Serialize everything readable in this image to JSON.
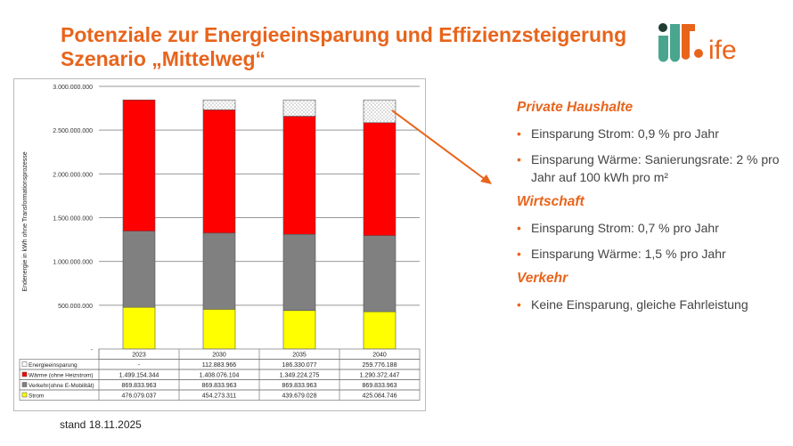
{
  "title": {
    "line1": "Potenziale zur Energieeinsparung und Effizienzsteigerung",
    "line2": "Szenario „Mittelweg“"
  },
  "logo": {
    "text": "ife"
  },
  "colors": {
    "accent": "#e8641b",
    "waerme": "#ff0000",
    "verkehr": "#808080",
    "strom": "#ffff00",
    "einsparung": "#ffffff"
  },
  "chart_data": {
    "type": "bar",
    "stacked": true,
    "ylabel": "Endenergie in kWh ohne Transformationsprozesse",
    "ylim": [
      0,
      3000000000
    ],
    "yticks": [
      "-",
      "500.000.000",
      "1.000.000.000",
      "1.500.000.000",
      "2.000.000.000",
      "2.500.000.000",
      "3.000.000.000"
    ],
    "categories": [
      "2023",
      "2030",
      "2035",
      "2040"
    ],
    "series": [
      {
        "name": "Strom",
        "color": "#ffff00",
        "values": [
          476079037,
          454273311,
          439679028,
          425084746
        ],
        "labels": [
          "476.079.037",
          "454.273.311",
          "439.679.028",
          "425.084.746"
        ]
      },
      {
        "name": "Verkehr(ohne E-Mobilität)",
        "color": "#808080",
        "values": [
          869833963,
          869833963,
          869833963,
          869833963
        ],
        "labels": [
          "869.833.963",
          "869.833.963",
          "869.833.963",
          "869.833.963"
        ]
      },
      {
        "name": "Wärme (ohne Heizstrom)",
        "color": "#ff0000",
        "values": [
          1499154344,
          1408076104,
          1349224275,
          1290372447
        ],
        "labels": [
          "1.499.154.344",
          "1.408.076.104",
          "1.349.224.275",
          "1.290.372.447"
        ]
      },
      {
        "name": "Energieeinsparung",
        "color": "#ffffff",
        "pattern": true,
        "values": [
          0,
          112883966,
          186330077,
          259776188
        ],
        "labels": [
          "-",
          "112.883.966",
          "186.330.077",
          "259.776.188"
        ]
      }
    ]
  },
  "footer": {
    "stand": "stand 18.11.2025"
  },
  "sections": [
    {
      "heading": "Private Haushalte",
      "bullets": [
        "Einsparung Strom: 0,9 % pro Jahr",
        "Einsparung Wärme: Sanierungsrate: 2 % pro Jahr auf 100 kWh pro m²"
      ]
    },
    {
      "heading": "Wirtschaft",
      "bullets": [
        "Einsparung Strom: 0,7 % pro Jahr",
        "Einsparung Wärme: 1,5 % pro Jahr"
      ]
    },
    {
      "heading": "Verkehr",
      "bullets": [
        "Keine Einsparung, gleiche Fahrleistung"
      ]
    }
  ]
}
